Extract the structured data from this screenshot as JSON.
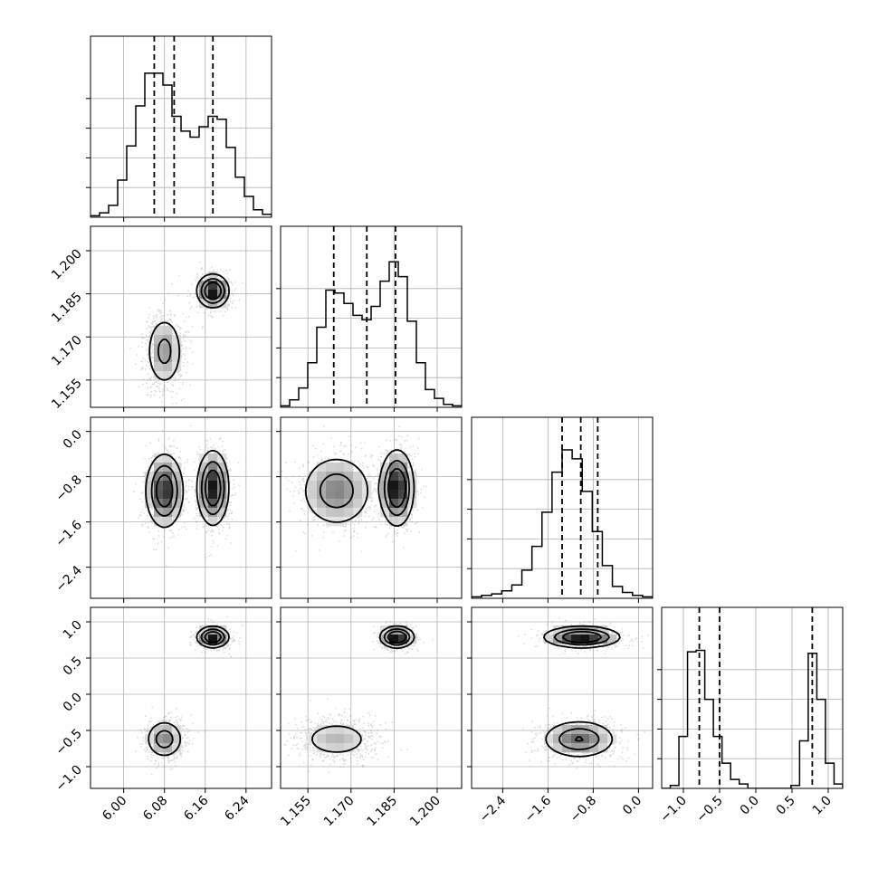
{
  "chart_data": {
    "type": "corner",
    "title": "",
    "grid": true,
    "params": [
      {
        "name": "",
        "range": [
          5.935,
          6.29
        ],
        "ticks": [
          "6.00",
          "6.08",
          "6.16",
          "6.24"
        ],
        "tick_values": [
          6.0,
          6.08,
          6.16,
          6.24
        ]
      },
      {
        "name": "",
        "range": [
          1.1455,
          1.2085
        ],
        "ticks": [
          "1.155",
          "1.170",
          "1.185",
          "1.200"
        ],
        "tick_values": [
          1.155,
          1.17,
          1.185,
          1.2
        ]
      },
      {
        "name": "",
        "range": [
          -2.95,
          0.25
        ],
        "ticks": [
          "-2.4",
          "-1.6",
          "-0.8",
          "0.0"
        ],
        "tick_values": [
          -2.4,
          -1.6,
          -0.8,
          0.0
        ]
      },
      {
        "name": "",
        "range": [
          -1.3,
          1.2
        ],
        "ticks": [
          "-1.0",
          "-0.5",
          "0.0",
          "0.5",
          "1.0"
        ],
        "tick_values": [
          -1.0,
          -0.5,
          0.0,
          0.5,
          1.0
        ]
      }
    ],
    "quantiles": [
      [
        6.06,
        6.099,
        6.175
      ],
      [
        1.164,
        1.1755,
        1.1855
      ],
      [
        -1.35,
        -1.02,
        -0.72
      ],
      [
        -0.78,
        -0.5,
        0.78
      ]
    ],
    "histograms": [
      [
        0.01,
        0.03,
        0.08,
        0.25,
        0.48,
        0.75,
        0.97,
        0.97,
        0.89,
        0.68,
        0.58,
        0.54,
        0.61,
        0.68,
        0.66,
        0.47,
        0.27,
        0.14,
        0.05,
        0.02
      ],
      [
        0.01,
        0.05,
        0.13,
        0.3,
        0.54,
        0.79,
        0.77,
        0.7,
        0.62,
        0.59,
        0.68,
        0.85,
        0.98,
        0.88,
        0.58,
        0.3,
        0.12,
        0.06,
        0.02,
        0.01
      ],
      [
        0.01,
        0.02,
        0.03,
        0.05,
        0.09,
        0.19,
        0.35,
        0.58,
        0.85,
        1.0,
        0.94,
        0.72,
        0.45,
        0.22,
        0.08,
        0.04,
        0.02,
        0.01
      ],
      [
        0.0,
        0.02,
        0.35,
        0.92,
        0.93,
        0.6,
        0.35,
        0.17,
        0.06,
        0.03,
        0.0,
        0.0,
        0.0,
        0.0,
        0.0,
        0.02,
        0.32,
        0.91,
        0.6,
        0.17,
        0.03
      ]
    ],
    "modes": [
      {
        "w": 0.52,
        "mean": [
          6.08,
          1.165,
          -1.05,
          -0.62
        ],
        "sd": [
          0.018,
          0.0062,
          0.32,
          0.13
        ]
      },
      {
        "w": 0.48,
        "mean": [
          6.175,
          1.186,
          -1.0,
          0.79
        ],
        "sd": [
          0.015,
          0.0028,
          0.32,
          0.07
        ]
      }
    ]
  }
}
